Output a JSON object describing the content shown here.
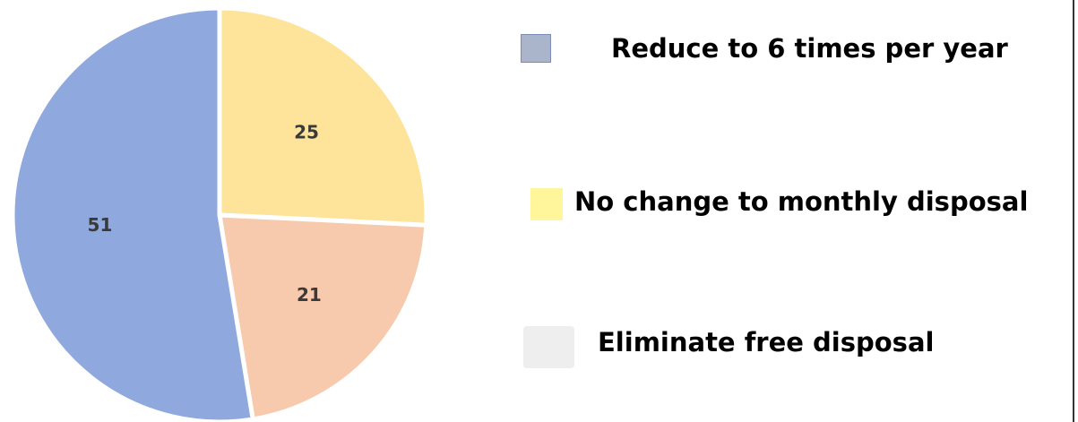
{
  "chart_data": {
    "type": "pie",
    "slices": [
      {
        "label": "No change to monthly disposal",
        "value": 25,
        "color": "#fde49a"
      },
      {
        "label": "Eliminate free disposal",
        "value": 21,
        "color": "#f7c9ad"
      },
      {
        "label": "Reduce to 6 times per year",
        "value": 51,
        "color": "#8fa9de"
      }
    ],
    "legend": {
      "placement": "right",
      "entries": [
        {
          "label": "Reduce to 6 times per year",
          "color": "#aab4cb"
        },
        {
          "label": "No change to monthly disposal",
          "color": "#fff59a"
        },
        {
          "label": "Eliminate free disposal",
          "color": "#eeeeee"
        }
      ]
    }
  }
}
